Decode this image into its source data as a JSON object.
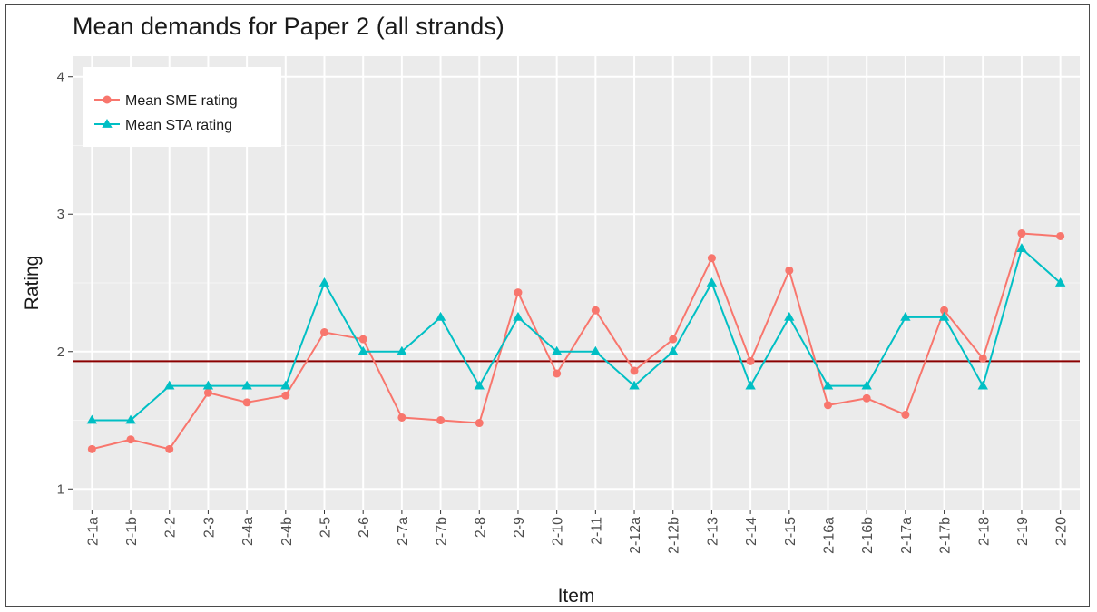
{
  "chart_data": {
    "type": "line",
    "title": "Mean demands for Paper 2 (all strands)",
    "xlabel": "Item",
    "ylabel": "Rating",
    "ylim": [
      0.85,
      4.15
    ],
    "yticks": [
      "1",
      "2",
      "3",
      "4"
    ],
    "grid": true,
    "legend_position": "top-left",
    "categories": [
      "2-1a",
      "2-1b",
      "2-2",
      "2-3",
      "2-4a",
      "2-4b",
      "2-5",
      "2-6",
      "2-7a",
      "2-7b",
      "2-8",
      "2-9",
      "2-10",
      "2-11",
      "2-12a",
      "2-12b",
      "2-13",
      "2-14",
      "2-15",
      "2-16a",
      "2-16b",
      "2-17a",
      "2-17b",
      "2-18",
      "2-19",
      "2-20"
    ],
    "series": [
      {
        "name": "Mean SME rating",
        "color": "#f8766d",
        "marker": "circle",
        "values": [
          1.29,
          1.36,
          1.29,
          1.7,
          1.63,
          1.68,
          2.14,
          2.09,
          1.52,
          1.5,
          1.48,
          2.43,
          1.84,
          2.3,
          1.86,
          2.09,
          2.68,
          1.93,
          2.59,
          1.61,
          1.66,
          1.54,
          2.3,
          1.95,
          2.86,
          2.84
        ]
      },
      {
        "name": "Mean STA rating",
        "color": "#00bfc4",
        "marker": "triangle",
        "values": [
          1.5,
          1.5,
          1.75,
          1.75,
          1.75,
          1.75,
          2.5,
          2.0,
          2.0,
          2.25,
          1.75,
          2.25,
          2.0,
          2.0,
          1.75,
          2.0,
          2.5,
          1.75,
          2.25,
          1.75,
          1.75,
          2.25,
          2.25,
          1.75,
          2.75,
          2.5
        ]
      }
    ],
    "reference_line": {
      "y": 1.93,
      "color": "#8b0000"
    }
  }
}
